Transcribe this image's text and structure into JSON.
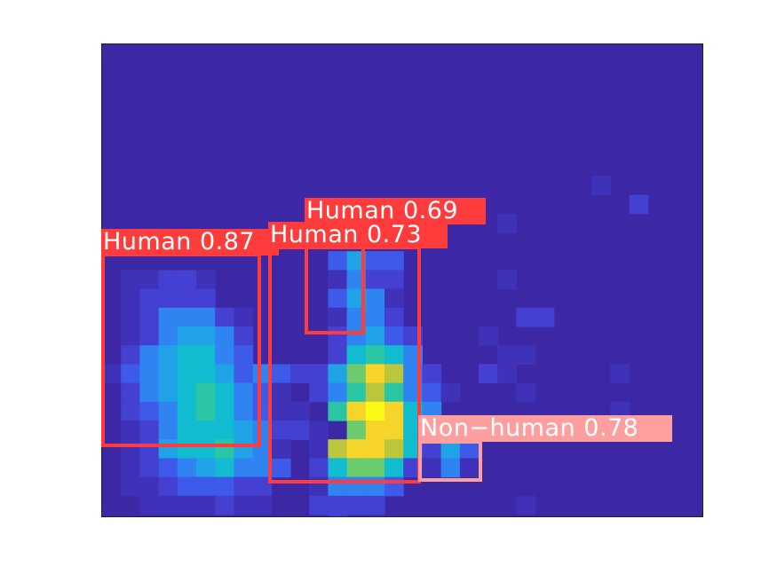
{
  "image": {
    "background_color": "#3c28a4",
    "colormap": "viridis-like thermal heatmap"
  },
  "detections": [
    {
      "label": "Human 0.87",
      "class": "Human",
      "score": 0.87,
      "color": "#ff3b3b"
    },
    {
      "label": "Human 0.73",
      "class": "Human",
      "score": 0.73,
      "color": "#ff3b3b"
    },
    {
      "label": "Human 0.69",
      "class": "Human",
      "score": 0.69,
      "color": "#ff3b3b"
    },
    {
      "label": "Non−human 0.78",
      "class": "Non−human",
      "score": 0.78,
      "color": "#ff9e9e"
    }
  ]
}
